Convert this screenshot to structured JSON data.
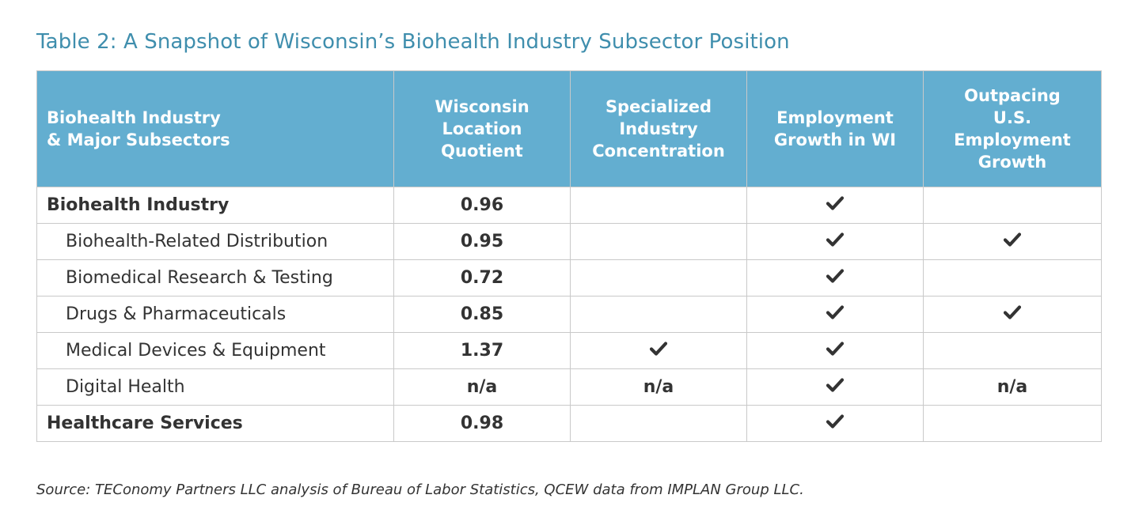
{
  "title": "Table 2: A Snapshot of Wisconsin’s Biohealth Industry Subsector Position",
  "colors": {
    "title": "#3f8ead",
    "header_bg": "#63aed0",
    "header_text": "#ffffff",
    "border": "#c9c9c9",
    "body_text": "#333333"
  },
  "headers": [
    [
      "Biohealth Industry",
      "& Major Subsectors"
    ],
    [
      "Wisconsin",
      "Location",
      "Quotient"
    ],
    [
      "Specialized",
      "Industry",
      "Concentration"
    ],
    [
      "Employment",
      "Growth in WI"
    ],
    [
      "Outpacing",
      "U.S.",
      "Employment",
      "Growth"
    ]
  ],
  "rows": [
    {
      "name": "Biohealth Industry",
      "level": "main",
      "lq": "0.96",
      "specialized": "",
      "growth_wi": "check",
      "outpacing": ""
    },
    {
      "name": "Biohealth-Related Distribution",
      "level": "sub",
      "lq": "0.95",
      "specialized": "",
      "growth_wi": "check",
      "outpacing": "check"
    },
    {
      "name": "Biomedical Research & Testing",
      "level": "sub",
      "lq": "0.72",
      "specialized": "",
      "growth_wi": "check",
      "outpacing": ""
    },
    {
      "name": "Drugs & Pharmaceuticals",
      "level": "sub",
      "lq": "0.85",
      "specialized": "",
      "growth_wi": "check",
      "outpacing": "check"
    },
    {
      "name": "Medical Devices & Equipment",
      "level": "sub",
      "lq": "1.37",
      "specialized": "check",
      "growth_wi": "check",
      "outpacing": ""
    },
    {
      "name": "Digital Health",
      "level": "sub",
      "lq": "n/a",
      "specialized": "n/a",
      "growth_wi": "check",
      "outpacing": "n/a"
    },
    {
      "name": "Healthcare Services",
      "level": "main",
      "lq": "0.98",
      "specialized": "",
      "growth_wi": "check",
      "outpacing": ""
    }
  ],
  "source": "Source: TEConomy Partners LLC analysis of Bureau of Labor Statistics, QCEW data from IMPLAN Group LLC."
}
